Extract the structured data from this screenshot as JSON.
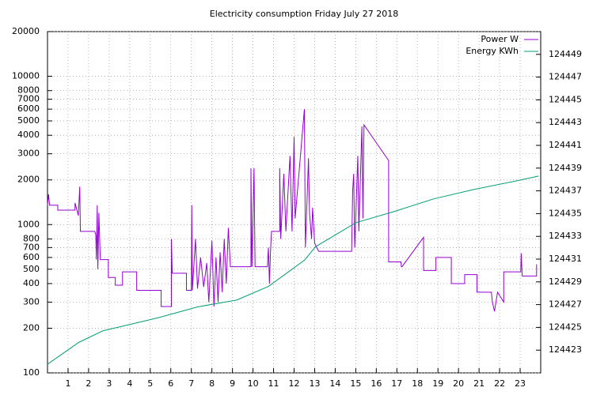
{
  "chart_data": {
    "type": "line",
    "title": "Electricity consumption Friday July 27 2018",
    "xlim": [
      0,
      24
    ],
    "xticks": [
      1,
      2,
      3,
      4,
      5,
      6,
      7,
      8,
      9,
      10,
      11,
      12,
      13,
      14,
      15,
      16,
      17,
      18,
      19,
      20,
      21,
      22,
      23
    ],
    "ylim": [
      100,
      20000
    ],
    "yscale": "log",
    "yticks": [
      100,
      200,
      300,
      400,
      500,
      600,
      700,
      800,
      1000,
      2000,
      3000,
      4000,
      5000,
      6000,
      7000,
      8000,
      10000,
      20000
    ],
    "y2lim": [
      124421,
      124451
    ],
    "y2ticks": [
      124423,
      124425,
      124427,
      124429,
      124431,
      124433,
      124435,
      124437,
      124439,
      124441,
      124443,
      124445,
      124447,
      124449
    ],
    "grid": true,
    "legend": "top-right",
    "series": [
      {
        "name": "Power W",
        "color": "#9400d3",
        "x": [
          0,
          0.05,
          0.1,
          0.5,
          0.5,
          1.34,
          1.34,
          1.5,
          1.57,
          1.6,
          2.3,
          2.35,
          2.38,
          2.42,
          2.45,
          2.5,
          2.57,
          2.96,
          2.96,
          3.3,
          3.3,
          3.65,
          3.65,
          4.34,
          4.34,
          5.53,
          5.53,
          6.03,
          6.03,
          6.07,
          6.76,
          6.76,
          7.0,
          7.02,
          7.05,
          7.2,
          7.3,
          7.45,
          7.6,
          7.75,
          7.85,
          8.0,
          8.1,
          8.2,
          8.3,
          8.4,
          8.5,
          8.6,
          8.7,
          8.8,
          8.9,
          9.0,
          9.2,
          9.9,
          9.9,
          9.95,
          10.05,
          10.1,
          10.7,
          10.75,
          10.8,
          10.85,
          10.9,
          11.3,
          11.3,
          11.35,
          11.5,
          11.6,
          11.8,
          11.9,
          12.0,
          12.05,
          12.5,
          12.55,
          12.7,
          12.75,
          12.85,
          12.9,
          13.0,
          13.1,
          13.2,
          13.2,
          14.8,
          14.85,
          14.9,
          14.95,
          15.1,
          15.15,
          15.3,
          15.35,
          15.4,
          16.6,
          16.6,
          17.2,
          17.22,
          17.25,
          18.3,
          18.3,
          18.9,
          18.9,
          19.65,
          19.65,
          20.3,
          20.3,
          20.9,
          20.9,
          21.6,
          21.65,
          21.75,
          21.9,
          22.2,
          22.2,
          23.03,
          23.05,
          23.1,
          23.8,
          23.8
        ],
        "values": [
          1350,
          1600,
          1350,
          1350,
          1250,
          1250,
          1400,
          1150,
          1800,
          900,
          900,
          850,
          580,
          1350,
          500,
          1200,
          580,
          580,
          440,
          440,
          390,
          390,
          480,
          480,
          360,
          360,
          280,
          280,
          800,
          470,
          470,
          360,
          360,
          1350,
          360,
          800,
          370,
          600,
          380,
          550,
          300,
          780,
          280,
          600,
          300,
          650,
          350,
          800,
          400,
          950,
          520,
          520,
          520,
          520,
          2400,
          520,
          2400,
          520,
          520,
          700,
          400,
          650,
          900,
          900,
          2400,
          800,
          2200,
          900,
          2900,
          900,
          3900,
          1100,
          6000,
          700,
          2800,
          1200,
          800,
          1300,
          750,
          700,
          660,
          660,
          660,
          1700,
          2200,
          700,
          2900,
          900,
          4600,
          1100,
          4700,
          2700,
          560,
          560,
          520,
          520,
          820,
          490,
          490,
          600,
          600,
          400,
          400,
          460,
          460,
          350,
          350,
          300,
          260,
          350,
          300,
          480,
          480,
          640,
          450,
          450,
          540
        ]
      },
      {
        "name": "Energy KWh",
        "color": "#009e73",
        "axis": "y2",
        "x": [
          0,
          1.54,
          2.7,
          5.4,
          7.3,
          9.2,
          10.75,
          12.5,
          13.05,
          15,
          16.9,
          18.8,
          20.7,
          22.6,
          23.9
        ],
        "values": [
          124421.76,
          124423.7,
          124424.7,
          124425.85,
          124426.8,
          124427.4,
          124428.6,
          124430.9,
          124432.1,
          124434.2,
          124435.2,
          124436.3,
          124437.1,
          124437.8,
          124438.3
        ]
      }
    ]
  }
}
